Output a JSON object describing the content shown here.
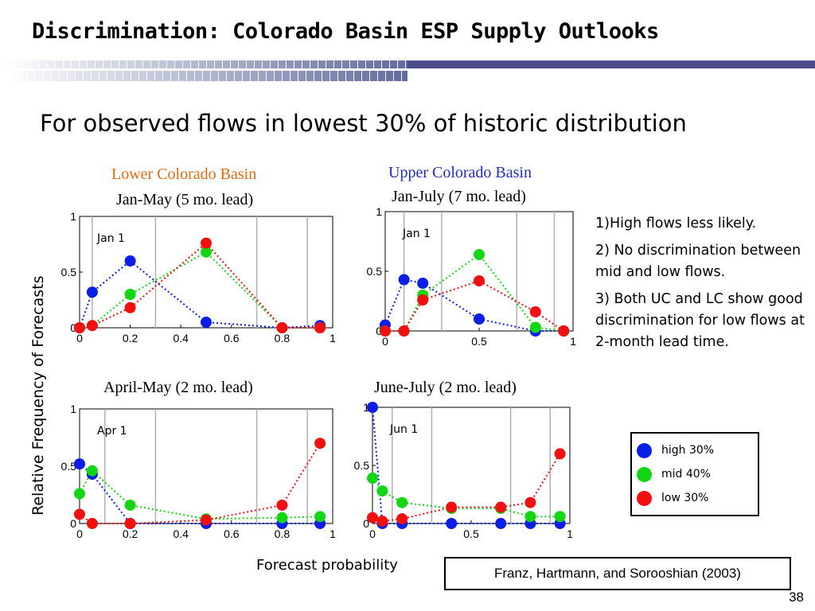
{
  "slide": {
    "title": "Discrimination: Colorado Basin ESP Supply Outlooks",
    "subtitle": "For observed flows in lowest 30% of historic distribution",
    "page_number": "38",
    "citation": "Franz, Hartmann, and Sorooshian (2003)",
    "ylabel": "Relative Frequency of Forecasts",
    "xlabel": "Forecast probability",
    "notes": [
      "1)High flows less likely.",
      "2) No discrimination between mid and low flows.",
      "3) Both UC and LC show good discrimination for low flows at 2-month lead time."
    ],
    "lower_basin_label": "Lower Colorado Basin",
    "upper_basin_label": "Upper Colorado Basin"
  },
  "legend": [
    {
      "name": "high 30%",
      "color": "#0a1ee6"
    },
    {
      "name": "mid 40%",
      "color": "#12d612"
    },
    {
      "name": "low 30%",
      "color": "#f01010"
    }
  ],
  "colors": {
    "high": "#0a1ee6",
    "mid": "#12d612",
    "low": "#f01010",
    "banner_dark": "#4d4d8a"
  },
  "chart_data": [
    {
      "type": "line",
      "title": "Jan-May (5 mo.  lead)",
      "annotation": "Jan 1",
      "xlim": [
        0,
        1
      ],
      "ylim": [
        0,
        1
      ],
      "xticks": [
        "0",
        "0.2",
        "0.4",
        "0.6",
        "0.8",
        "1"
      ],
      "yticks": [
        "0",
        "0.5",
        "1"
      ],
      "grid_x": [
        0.05,
        0.3,
        0.7,
        0.9
      ],
      "series": [
        {
          "name": "high 30%",
          "x": [
            0,
            0.05,
            0.2,
            0.5,
            0.8,
            0.95
          ],
          "y": [
            0.0,
            0.32,
            0.6,
            0.05,
            0.0,
            0.02
          ]
        },
        {
          "name": "mid 40%",
          "x": [
            0,
            0.05,
            0.2,
            0.5,
            0.8,
            0.95
          ],
          "y": [
            0.0,
            0.02,
            0.3,
            0.68,
            0.0,
            0.0
          ]
        },
        {
          "name": "low 30%",
          "x": [
            0,
            0.05,
            0.2,
            0.5,
            0.8,
            0.95
          ],
          "y": [
            0.0,
            0.02,
            0.18,
            0.76,
            0.0,
            0.0
          ]
        }
      ]
    },
    {
      "type": "line",
      "title": "Jan-July (7 mo.  lead)",
      "annotation": "Jan 1",
      "xlim": [
        0,
        1
      ],
      "ylim": [
        0,
        1
      ],
      "xticks": [
        "0",
        "0.5",
        "1"
      ],
      "yticks": [
        "0",
        "0.5",
        "1"
      ],
      "grid_x": [
        0.1,
        0.3,
        0.7,
        0.9
      ],
      "series": [
        {
          "name": "high 30%",
          "x": [
            0,
            0.1,
            0.2,
            0.5,
            0.8,
            0.95
          ],
          "y": [
            0.05,
            0.43,
            0.4,
            0.1,
            0.0,
            0.0
          ]
        },
        {
          "name": "mid 40%",
          "x": [
            0,
            0.1,
            0.2,
            0.5,
            0.8,
            0.95
          ],
          "y": [
            0.0,
            0.0,
            0.3,
            0.64,
            0.03,
            0.0
          ]
        },
        {
          "name": "low 30%",
          "x": [
            0,
            0.1,
            0.2,
            0.5,
            0.8,
            0.95
          ],
          "y": [
            0.0,
            0.0,
            0.26,
            0.42,
            0.16,
            0.0
          ]
        }
      ]
    },
    {
      "type": "line",
      "title": "April-May (2 mo.  lead)",
      "annotation": "Apr 1",
      "xlim": [
        0,
        1
      ],
      "ylim": [
        0,
        1
      ],
      "xticks": [
        "0",
        "0.2",
        "0.4",
        "0.6",
        "0.8",
        "1"
      ],
      "yticks": [
        "0",
        "0.5",
        "1"
      ],
      "grid_x": [
        0.1,
        0.3,
        0.7,
        0.9
      ],
      "series": [
        {
          "name": "high 30%",
          "x": [
            0,
            0.05,
            0.2,
            0.5,
            0.8,
            0.95
          ],
          "y": [
            0.52,
            0.43,
            0.0,
            0.0,
            0.0,
            0.0
          ]
        },
        {
          "name": "mid 40%",
          "x": [
            0,
            0.05,
            0.2,
            0.5,
            0.8,
            0.95
          ],
          "y": [
            0.26,
            0.46,
            0.16,
            0.04,
            0.05,
            0.06
          ]
        },
        {
          "name": "low 30%",
          "x": [
            0,
            0.05,
            0.2,
            0.5,
            0.8,
            0.95
          ],
          "y": [
            0.08,
            0.0,
            0.0,
            0.03,
            0.16,
            0.7
          ]
        }
      ]
    },
    {
      "type": "line",
      "title": "June-July (2 mo.  lead)",
      "annotation": "Jun 1",
      "xlim": [
        0,
        1
      ],
      "ylim": [
        0,
        1
      ],
      "xticks": [
        "0",
        "0.5",
        "1"
      ],
      "yticks": [
        "0",
        "0.5",
        "1"
      ],
      "grid_x": [
        0.1,
        0.3,
        0.7,
        0.9
      ],
      "series": [
        {
          "name": "high 30%",
          "x": [
            0,
            0.05,
            0.15,
            0.4,
            0.65,
            0.8,
            0.95
          ],
          "y": [
            1.0,
            0.0,
            0.0,
            0.0,
            0.0,
            0.0,
            0.0
          ]
        },
        {
          "name": "mid 40%",
          "x": [
            0,
            0.05,
            0.15,
            0.4,
            0.65,
            0.8,
            0.95
          ],
          "y": [
            0.39,
            0.28,
            0.18,
            0.13,
            0.13,
            0.06,
            0.06
          ]
        },
        {
          "name": "low 30%",
          "x": [
            0,
            0.05,
            0.15,
            0.4,
            0.65,
            0.8,
            0.95
          ],
          "y": [
            0.05,
            0.02,
            0.04,
            0.14,
            0.14,
            0.18,
            0.6
          ]
        }
      ]
    }
  ]
}
